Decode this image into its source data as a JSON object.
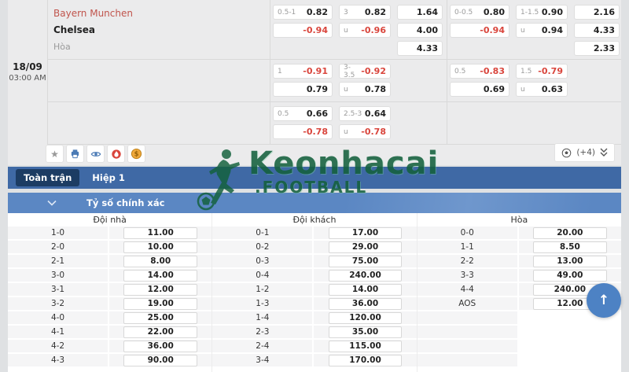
{
  "colors": {
    "negative_odd": "#d9453c",
    "tab_bar": "#3f69a5",
    "active_tab": "#1c3c63",
    "section_bar": "#5b87c3",
    "watermark_green": "#14613d",
    "scroll_button": "#4d82c4"
  },
  "match": {
    "date": "18/09",
    "time": "03:00 AM",
    "home_team": "Bayern Munchen",
    "away_team": "Chelsea",
    "draw_label": "Hòa",
    "more_count": "(+4)"
  },
  "odds_sections": [
    {
      "left": [
        {
          "cells": [
            {
              "label": "0.5-1",
              "value": "0.82"
            },
            {
              "label": "",
              "value": "-0.94"
            }
          ]
        },
        {
          "cells": [
            {
              "label": "3",
              "value": "0.82"
            },
            {
              "label": "u",
              "value": "-0.96"
            }
          ]
        },
        {
          "cells": [
            {
              "label": "",
              "value": "1.64"
            },
            {
              "label": "",
              "value": "4.00"
            },
            {
              "label": "",
              "value": "4.33"
            }
          ]
        }
      ],
      "right": [
        {
          "cells": [
            {
              "label": "0-0.5",
              "value": "0.80"
            },
            {
              "label": "",
              "value": "-0.94"
            }
          ]
        },
        {
          "cells": [
            {
              "label": "1-1.5",
              "value": "0.90"
            },
            {
              "label": "u",
              "value": "0.94"
            }
          ]
        },
        {
          "cells": [
            {
              "label": "",
              "value": "2.16"
            },
            {
              "label": "",
              "value": "4.33"
            },
            {
              "label": "",
              "value": "2.33"
            }
          ]
        }
      ]
    },
    {
      "left": [
        {
          "cells": [
            {
              "label": "1",
              "value": "-0.91"
            },
            {
              "label": "",
              "value": "0.79"
            }
          ]
        },
        {
          "cells": [
            {
              "label": "3-3.5",
              "value": "-0.92"
            },
            {
              "label": "u",
              "value": "0.78"
            }
          ]
        }
      ],
      "right": [
        {
          "cells": [
            {
              "label": "0.5",
              "value": "-0.83"
            },
            {
              "label": "",
              "value": "0.69"
            }
          ]
        },
        {
          "cells": [
            {
              "label": "1.5",
              "value": "-0.79"
            },
            {
              "label": "u",
              "value": "0.63"
            }
          ]
        }
      ]
    },
    {
      "left": [
        {
          "cells": [
            {
              "label": "0.5",
              "value": "0.66"
            },
            {
              "label": "",
              "value": "-0.78"
            }
          ]
        },
        {
          "cells": [
            {
              "label": "2.5-3",
              "value": "0.64"
            },
            {
              "label": "u",
              "value": "-0.78"
            }
          ]
        }
      ],
      "right": []
    }
  ],
  "tabs": {
    "full_match": "Toàn trận",
    "first_half": "Hiệp 1"
  },
  "section_header": {
    "title": "Tỷ số chính xác"
  },
  "watermark": {
    "line1": "Keonhacai",
    "line2": ".FOOTBALL"
  },
  "score_table": {
    "columns": [
      {
        "header": "Đội nhà",
        "rows": [
          {
            "score": "1-0",
            "odd": "11.00"
          },
          {
            "score": "2-0",
            "odd": "10.00"
          },
          {
            "score": "2-1",
            "odd": "8.00"
          },
          {
            "score": "3-0",
            "odd": "14.00"
          },
          {
            "score": "3-1",
            "odd": "12.00"
          },
          {
            "score": "3-2",
            "odd": "19.00"
          },
          {
            "score": "4-0",
            "odd": "25.00"
          },
          {
            "score": "4-1",
            "odd": "22.00"
          },
          {
            "score": "4-2",
            "odd": "36.00"
          },
          {
            "score": "4-3",
            "odd": "90.00"
          }
        ]
      },
      {
        "header": "Đội khách",
        "rows": [
          {
            "score": "0-1",
            "odd": "17.00"
          },
          {
            "score": "0-2",
            "odd": "29.00"
          },
          {
            "score": "0-3",
            "odd": "75.00"
          },
          {
            "score": "0-4",
            "odd": "240.00"
          },
          {
            "score": "1-2",
            "odd": "14.00"
          },
          {
            "score": "1-3",
            "odd": "36.00"
          },
          {
            "score": "1-4",
            "odd": "120.00"
          },
          {
            "score": "2-3",
            "odd": "35.00"
          },
          {
            "score": "2-4",
            "odd": "115.00"
          },
          {
            "score": "3-4",
            "odd": "170.00"
          }
        ]
      },
      {
        "header": "Hòa",
        "rows": [
          {
            "score": "0-0",
            "odd": "20.00"
          },
          {
            "score": "1-1",
            "odd": "8.50"
          },
          {
            "score": "2-2",
            "odd": "13.00"
          },
          {
            "score": "3-3",
            "odd": "49.00"
          },
          {
            "score": "4-4",
            "odd": "240.00"
          },
          {
            "score": "AOS",
            "odd": "12.00"
          },
          {
            "score": "",
            "odd": ""
          },
          {
            "score": "",
            "odd": ""
          },
          {
            "score": "",
            "odd": ""
          },
          {
            "score": "",
            "odd": ""
          }
        ]
      }
    ]
  }
}
